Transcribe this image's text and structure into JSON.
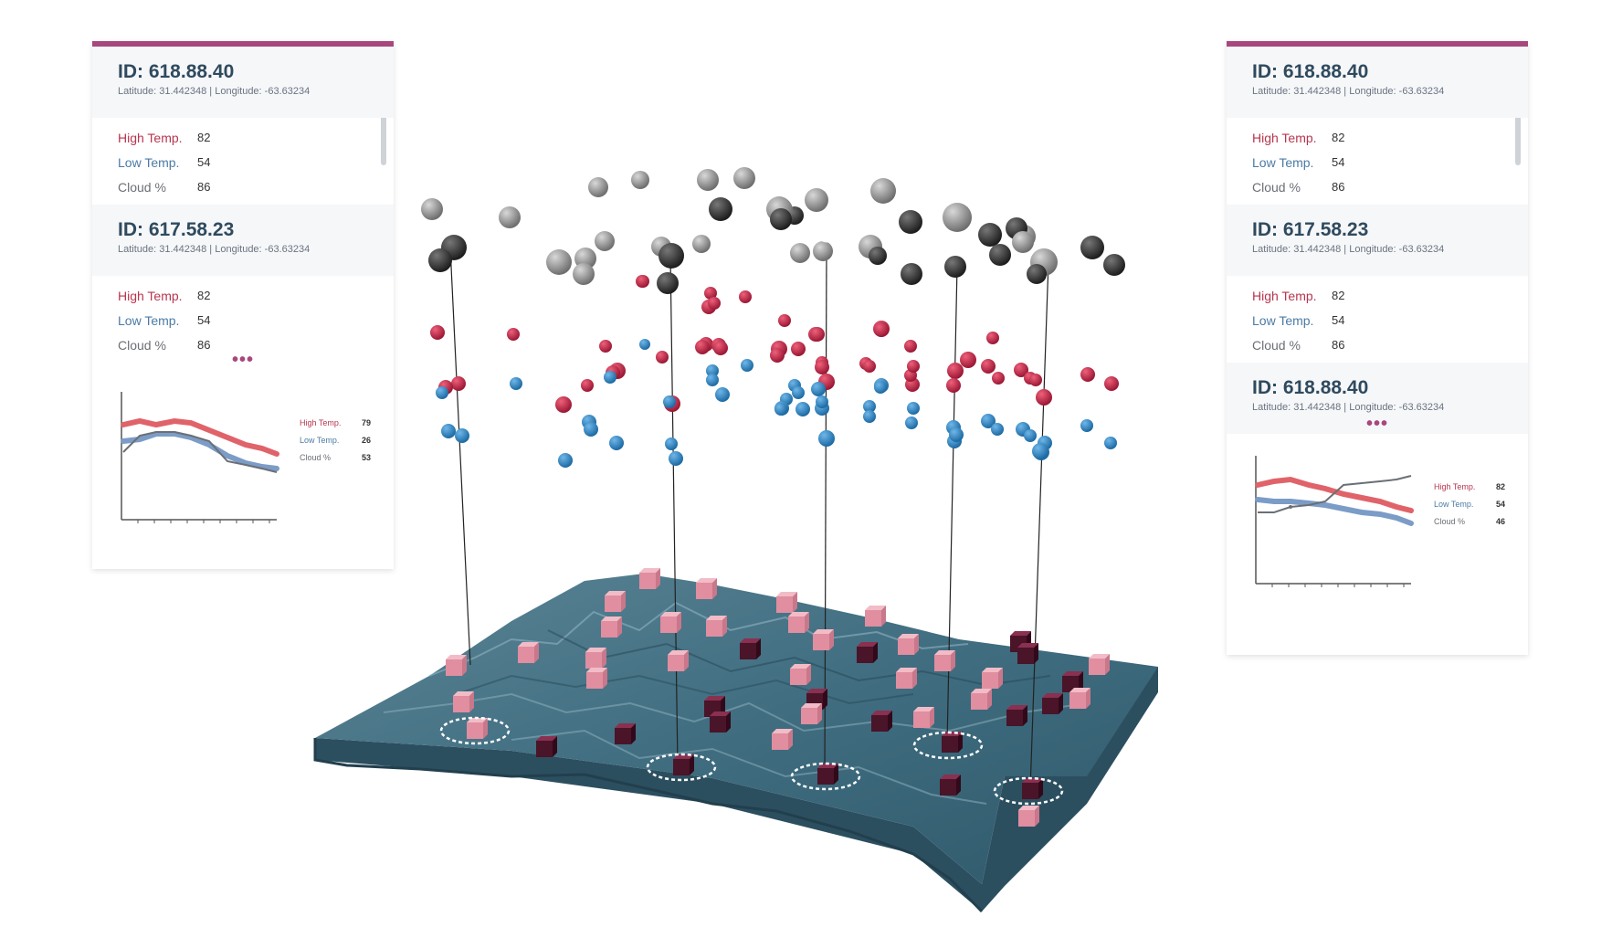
{
  "colors": {
    "accent": "#a8477e",
    "high": "#b8354e",
    "low": "#4b7ba5",
    "cloud": "#6b6f75",
    "terrain": "#3d6678",
    "terrain_side": "#2c4f60",
    "sphere_dark": "#333333",
    "sphere_gray": "#8a8a8a",
    "sphere_red": "#c0284a",
    "sphere_blue": "#2f86c5",
    "cube": "#e9a6b4",
    "cube_dark": "#5c1c33"
  },
  "left_panel": {
    "cards": [
      {
        "id": "ID: 618.88.40",
        "coords": "Latitude: 31.442348 | Longitude: -63.63234",
        "high_label": "High Temp.",
        "high": "82",
        "low_label": "Low Temp.",
        "low": "54",
        "cloud_label": "Cloud %",
        "cloud": "86"
      },
      {
        "id": "ID: 617.58.23",
        "coords": "Latitude: 31.442348 | Longitude: -63.63234",
        "high_label": "High Temp.",
        "high": "82",
        "low_label": "Low Temp.",
        "low": "54",
        "cloud_label": "Cloud %",
        "cloud": "86"
      }
    ],
    "more": "•••",
    "legend": {
      "high_label": "High Temp.",
      "high": "79",
      "low_label": "Low Temp.",
      "low": "26",
      "cloud_label": "Cloud %",
      "cloud": "53"
    }
  },
  "right_panel": {
    "cards": [
      {
        "id": "ID: 618.88.40",
        "coords": "Latitude: 31.442348 | Longitude: -63.63234",
        "high_label": "High Temp.",
        "high": "82",
        "low_label": "Low Temp.",
        "low": "54",
        "cloud_label": "Cloud %",
        "cloud": "86"
      },
      {
        "id": "ID: 617.58.23",
        "coords": "Latitude: 31.442348 | Longitude: -63.63234",
        "high_label": "High Temp.",
        "high": "82",
        "low_label": "Low Temp.",
        "low": "54",
        "cloud_label": "Cloud %",
        "cloud": "86"
      },
      {
        "id": "ID: 618.88.40",
        "coords": "Latitude: 31.442348 | Longitude: -63.63234"
      }
    ],
    "more": "•••",
    "legend": {
      "high_label": "High Temp.",
      "high": "82",
      "low_label": "Low Temp.",
      "low": "54",
      "cloud_label": "Cloud %",
      "cloud": "46"
    }
  }
}
